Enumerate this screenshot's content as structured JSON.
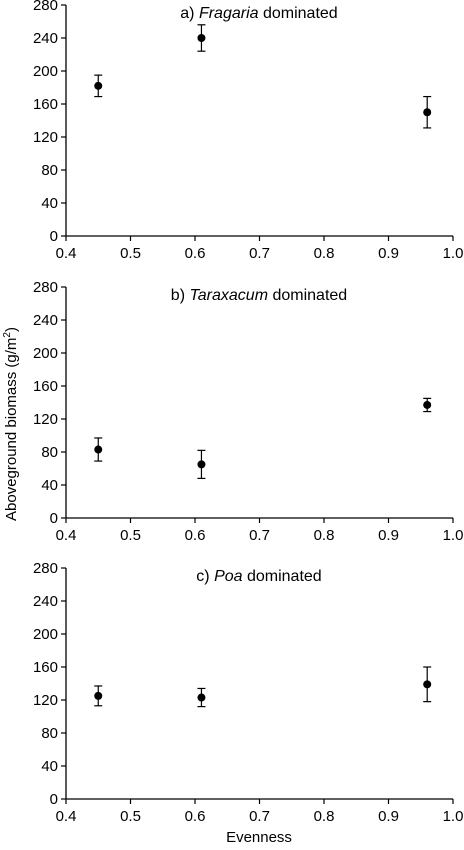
{
  "chart_data": [
    {
      "type": "scatter",
      "title_prefix": "a)",
      "title_taxon": "Fragaria",
      "title_suffix": "dominated",
      "xlim": [
        0.4,
        1.0
      ],
      "ylim": [
        0,
        280
      ],
      "xticks": [
        "0.4",
        "0.5",
        "0.6",
        "0.7",
        "0.8",
        "0.9",
        "1.0"
      ],
      "yticks": [
        "0",
        "40",
        "80",
        "120",
        "160",
        "200",
        "240",
        "280"
      ],
      "grid": false,
      "points": [
        {
          "x": 0.45,
          "y": 182,
          "err": 13
        },
        {
          "x": 0.61,
          "y": 240,
          "err": 16
        },
        {
          "x": 0.96,
          "y": 150,
          "err": 19
        }
      ]
    },
    {
      "type": "scatter",
      "title_prefix": "b)",
      "title_taxon": "Taraxacum",
      "title_suffix": "dominated",
      "xlim": [
        0.4,
        1.0
      ],
      "ylim": [
        0,
        280
      ],
      "xticks": [
        "0.4",
        "0.5",
        "0.6",
        "0.7",
        "0.8",
        "0.9",
        "1.0"
      ],
      "yticks": [
        "0",
        "40",
        "80",
        "120",
        "160",
        "200",
        "240",
        "280"
      ],
      "grid": false,
      "points": [
        {
          "x": 0.45,
          "y": 83,
          "err": 14
        },
        {
          "x": 0.61,
          "y": 65,
          "err": 17
        },
        {
          "x": 0.96,
          "y": 137,
          "err": 8
        }
      ]
    },
    {
      "type": "scatter",
      "title_prefix": "c)",
      "title_taxon": "Poa",
      "title_suffix": "dominated",
      "xlim": [
        0.4,
        1.0
      ],
      "ylim": [
        0,
        280
      ],
      "xticks": [
        "0.4",
        "0.5",
        "0.6",
        "0.7",
        "0.8",
        "0.9",
        "1.0"
      ],
      "yticks": [
        "0",
        "40",
        "80",
        "120",
        "160",
        "200",
        "240",
        "280"
      ],
      "grid": false,
      "points": [
        {
          "x": 0.45,
          "y": 125,
          "err": 12
        },
        {
          "x": 0.61,
          "y": 123,
          "err": 11
        },
        {
          "x": 0.96,
          "y": 139,
          "err": 21
        }
      ]
    }
  ],
  "ylabel_main": "Aboveground biomass (g/m",
  "ylabel_sup": "2",
  "ylabel_close": ")",
  "xlabel": "Evenness"
}
